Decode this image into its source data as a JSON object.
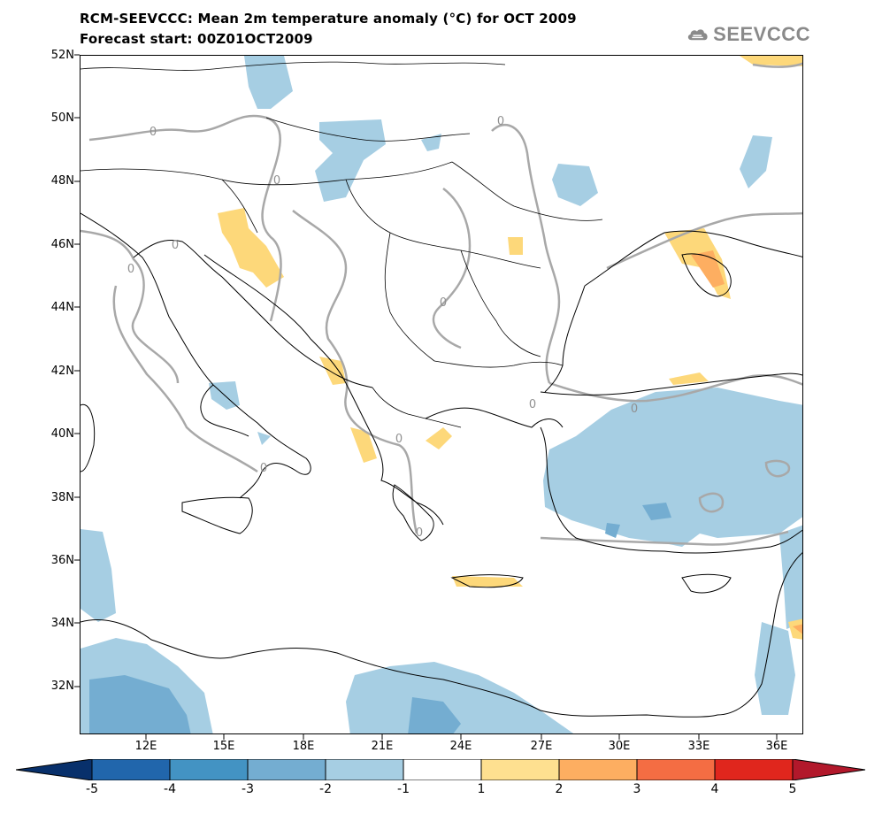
{
  "header": {
    "title": "RCM-SEEVCCC: Mean 2m temperature anomaly (°C) for OCT 2009",
    "subtitle": "Forecast start: 00Z01OCT2009",
    "logo_text": "SEEVCCC"
  },
  "map": {
    "projection": "lat-lon",
    "lon_range": [
      9.6,
      36.9
    ],
    "lat_range": [
      30.6,
      52.0
    ],
    "lat_ticks": [
      {
        "lat": 52,
        "label": "52N"
      },
      {
        "lat": 50,
        "label": "50N"
      },
      {
        "lat": 48,
        "label": "48N"
      },
      {
        "lat": 46,
        "label": "46N"
      },
      {
        "lat": 44,
        "label": "44N"
      },
      {
        "lat": 42,
        "label": "42N"
      },
      {
        "lat": 40,
        "label": "40N"
      },
      {
        "lat": 38,
        "label": "38N"
      },
      {
        "lat": 36,
        "label": "36N"
      },
      {
        "lat": 34,
        "label": "34N"
      },
      {
        "lat": 32,
        "label": "32N"
      }
    ],
    "lon_ticks": [
      {
        "lon": 12,
        "label": "12E"
      },
      {
        "lon": 15,
        "label": "15E"
      },
      {
        "lon": 18,
        "label": "18E"
      },
      {
        "lon": 21,
        "label": "21E"
      },
      {
        "lon": 24,
        "label": "24E"
      },
      {
        "lon": 27,
        "label": "27E"
      },
      {
        "lon": 30,
        "label": "30E"
      },
      {
        "lon": 33,
        "label": "33E"
      },
      {
        "lon": 36,
        "label": "36E"
      }
    ],
    "contour_label": "0",
    "colors": {
      "neg_1_2": "#a6cee3",
      "neg_2_3": "#74add1",
      "neg_3_4": "#4f92c8",
      "neg_4_5": "#2c6fb0",
      "pos_1_2": "#fdd87a",
      "pos_2_3": "#fdae61",
      "pos_3_4": "#f46d43",
      "contour": "#a8a8a8",
      "coast": "#000000"
    }
  },
  "colorbar": {
    "ticks": [
      "-5",
      "-4",
      "-3",
      "-2",
      "-1",
      "1",
      "2",
      "3",
      "4",
      "5"
    ],
    "colors": [
      "#08306b",
      "#2166ac",
      "#4393c3",
      "#74add1",
      "#a6cee3",
      "#ffffff",
      "#fee090",
      "#fdae61",
      "#f46d43",
      "#e0261d",
      "#b2182b"
    ]
  }
}
